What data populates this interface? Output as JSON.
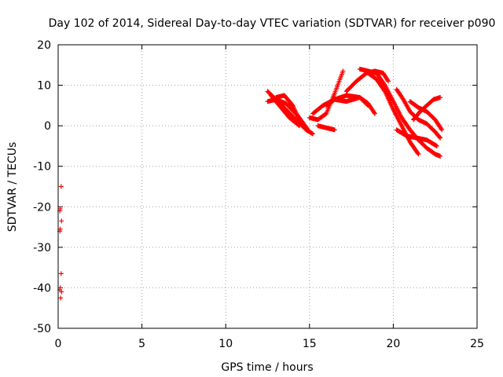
{
  "chart_data": {
    "type": "scatter",
    "title": "Day 102 of 2014, Sidereal Day-to-day VTEC variation (SDTVAR) for receiver p090",
    "xlabel": "GPS time / hours",
    "ylabel": "SDTVAR / TECUs",
    "xlim": [
      0,
      25
    ],
    "ylim": [
      -50,
      20
    ],
    "xticks": [
      0,
      5,
      10,
      15,
      20,
      25
    ],
    "yticks": [
      -50,
      -40,
      -30,
      -20,
      -10,
      0,
      10,
      20
    ],
    "grid": true,
    "marker": "plus",
    "color": "#ff0000",
    "isolated_points": [
      [
        0.18,
        -15
      ],
      [
        0.12,
        -20.5
      ],
      [
        0.1,
        -21
      ],
      [
        0.2,
        -23.5
      ],
      [
        0.12,
        -25.5
      ],
      [
        0.1,
        -26
      ],
      [
        0.18,
        -36.5
      ],
      [
        0.12,
        -40
      ],
      [
        0.1,
        -40.5
      ],
      [
        0.2,
        -41
      ],
      [
        0.15,
        -42.5
      ]
    ],
    "tracks": [
      {
        "x": [
          12.5,
          13.0,
          13.6,
          14.2,
          14.8,
          15.2
        ],
        "y": [
          8.5,
          6.5,
          4.0,
          1.5,
          -1.0,
          -2.0
        ]
      },
      {
        "x": [
          12.5,
          13.0,
          13.6,
          14.3,
          15.0
        ],
        "y": [
          6.0,
          6.5,
          5.5,
          2.5,
          -1.5
        ]
      },
      {
        "x": [
          12.7,
          13.2,
          13.8,
          14.4
        ],
        "y": [
          7.5,
          5.0,
          2.0,
          0.0
        ]
      },
      {
        "x": [
          13.0,
          13.5,
          14.0,
          14.5
        ],
        "y": [
          7.0,
          7.5,
          5.0,
          0.5
        ]
      },
      {
        "x": [
          15.5,
          16.0,
          16.5
        ],
        "y": [
          0.0,
          -0.5,
          -1.0
        ]
      },
      {
        "x": [
          15.0,
          15.5,
          16.0,
          16.5,
          17.0
        ],
        "y": [
          2.0,
          1.5,
          3.0,
          8.0,
          13.5
        ]
      },
      {
        "x": [
          15.2,
          15.8,
          16.5,
          17.2,
          18.0,
          18.5
        ],
        "y": [
          3.0,
          5.0,
          6.5,
          6.0,
          7.0,
          5.0
        ]
      },
      {
        "x": [
          16.0,
          16.5,
          17.2,
          18.0,
          18.5,
          18.9
        ],
        "y": [
          5.0,
          6.5,
          7.5,
          7.0,
          5.5,
          3.0
        ]
      },
      {
        "x": [
          17.2,
          17.8,
          18.4,
          18.9,
          19.4,
          19.7
        ],
        "y": [
          8.5,
          11.0,
          13.0,
          13.5,
          13.0,
          11.0
        ]
      },
      {
        "x": [
          18.0,
          18.5,
          19.0,
          19.5,
          20.0,
          20.5,
          21.0,
          21.5,
          22.0,
          22.5,
          22.8
        ],
        "y": [
          14.0,
          13.5,
          13.0,
          10.0,
          6.0,
          2.0,
          -1.0,
          -3.5,
          -5.5,
          -7.0,
          -7.5
        ]
      },
      {
        "x": [
          18.5,
          19.0,
          19.5,
          20.0,
          20.5,
          21.0,
          21.5
        ],
        "y": [
          13.0,
          11.5,
          8.5,
          4.0,
          0.0,
          -4.0,
          -7.0
        ]
      },
      {
        "x": [
          20.2,
          20.6,
          21.0,
          21.5,
          22.0,
          22.5,
          22.8
        ],
        "y": [
          9.0,
          6.5,
          3.5,
          1.5,
          0.5,
          -1.5,
          -3.0
        ]
      },
      {
        "x": [
          21.0,
          21.5,
          22.0,
          22.5,
          22.9
        ],
        "y": [
          6.0,
          4.5,
          3.5,
          1.5,
          -1.0
        ]
      },
      {
        "x": [
          21.2,
          21.6,
          22.0,
          22.4,
          22.8
        ],
        "y": [
          1.5,
          3.5,
          5.0,
          6.5,
          7.0
        ]
      },
      {
        "x": [
          20.2,
          20.8,
          21.4,
          22.0,
          22.6
        ],
        "y": [
          -1.0,
          -2.5,
          -3.0,
          -3.5,
          -5.0
        ]
      }
    ]
  }
}
